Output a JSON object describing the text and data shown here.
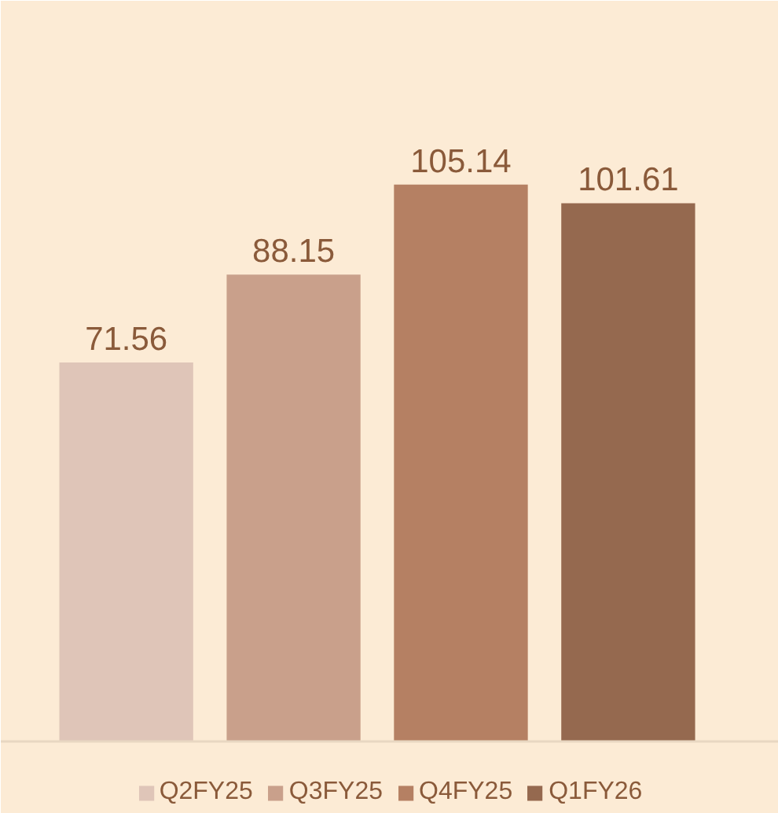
{
  "chart_data": {
    "type": "bar",
    "categories": [
      null,
      null,
      null,
      null
    ],
    "stacked": true,
    "series": [
      {
        "name": "Q2FY25",
        "color": "#dfc5b8",
        "values": [
          71.56,
          null,
          null,
          null
        ]
      },
      {
        "name": "Q3FY25",
        "color": "#c9a08b",
        "values": [
          null,
          88.15,
          null,
          null
        ]
      },
      {
        "name": "Q4FY25",
        "color": "#b58063",
        "values": [
          null,
          null,
          105.14,
          null
        ]
      },
      {
        "name": "Q1FY26",
        "color": "#95694f",
        "values": [
          null,
          null,
          null,
          101.61
        ]
      }
    ],
    "data_labels": true,
    "tick_labels": false,
    "grid": false,
    "legend": "bottom"
  }
}
